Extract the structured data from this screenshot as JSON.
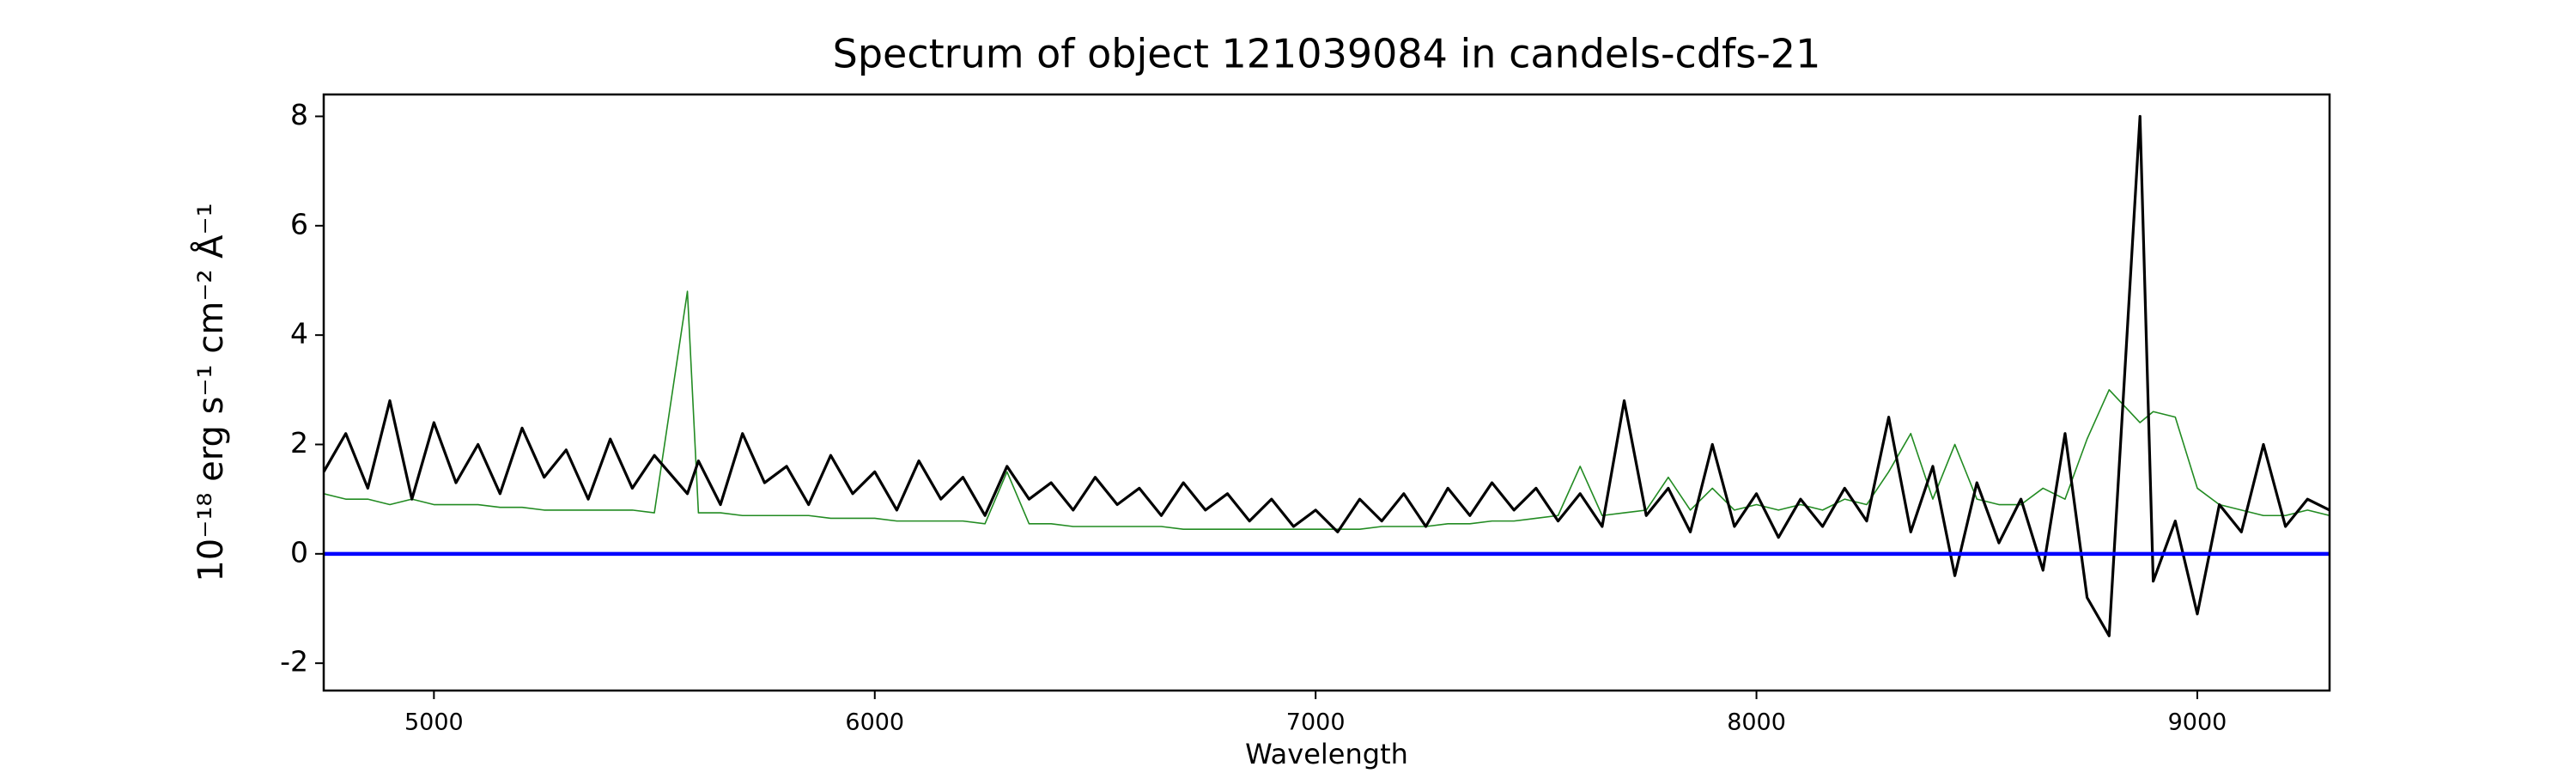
{
  "chart_data": {
    "type": "line",
    "title": "Spectrum of object 121039084 in candels-cdfs-21",
    "xlabel": "Wavelength",
    "ylabel": "10⁻¹⁸ erg s⁻¹ cm⁻² Å⁻¹",
    "xlim": [
      4750,
      9300
    ],
    "ylim": [
      -2.5,
      8.4
    ],
    "xticks": [
      5000,
      6000,
      7000,
      8000,
      9000
    ],
    "yticks": [
      -2,
      0,
      2,
      4,
      6,
      8
    ],
    "hlines": [
      {
        "y": 0,
        "color": "#0000ff"
      }
    ],
    "x": [
      4750,
      4800,
      4850,
      4900,
      4950,
      5000,
      5050,
      5100,
      5150,
      5200,
      5250,
      5300,
      5350,
      5400,
      5450,
      5500,
      5575,
      5600,
      5650,
      5700,
      5750,
      5800,
      5850,
      5900,
      5950,
      6000,
      6050,
      6100,
      6150,
      6200,
      6250,
      6300,
      6350,
      6400,
      6450,
      6500,
      6550,
      6600,
      6650,
      6700,
      6750,
      6800,
      6850,
      6900,
      6950,
      7000,
      7050,
      7100,
      7150,
      7200,
      7250,
      7300,
      7350,
      7400,
      7450,
      7500,
      7550,
      7600,
      7650,
      7700,
      7750,
      7800,
      7850,
      7900,
      7950,
      8000,
      8050,
      8100,
      8150,
      8200,
      8250,
      8300,
      8350,
      8400,
      8450,
      8500,
      8550,
      8600,
      8650,
      8700,
      8750,
      8800,
      8870,
      8900,
      8950,
      9000,
      9050,
      9100,
      9150,
      9200,
      9250,
      9300
    ],
    "series": [
      {
        "color": "#228b22",
        "width": 1.6,
        "values": [
          1.1,
          1.0,
          1.0,
          0.9,
          1.0,
          0.9,
          0.9,
          0.9,
          0.85,
          0.85,
          0.8,
          0.8,
          0.8,
          0.8,
          0.8,
          0.75,
          4.8,
          0.75,
          0.75,
          0.7,
          0.7,
          0.7,
          0.7,
          0.65,
          0.65,
          0.65,
          0.6,
          0.6,
          0.6,
          0.6,
          0.55,
          1.5,
          0.55,
          0.55,
          0.5,
          0.5,
          0.5,
          0.5,
          0.5,
          0.45,
          0.45,
          0.45,
          0.45,
          0.45,
          0.45,
          0.45,
          0.45,
          0.45,
          0.5,
          0.5,
          0.5,
          0.55,
          0.55,
          0.6,
          0.6,
          0.65,
          0.7,
          1.6,
          0.7,
          0.75,
          0.8,
          1.4,
          0.8,
          1.2,
          0.8,
          0.9,
          0.8,
          0.9,
          0.8,
          1.0,
          0.9,
          1.5,
          2.2,
          1.0,
          2.0,
          1.0,
          0.9,
          0.9,
          1.2,
          1.0,
          2.1,
          3.0,
          2.4,
          2.6,
          2.5,
          1.2,
          0.9,
          0.8,
          0.7,
          0.7,
          0.8,
          0.7
        ]
      },
      {
        "color": "#000000",
        "width": 3.2,
        "values": [
          1.5,
          2.2,
          1.2,
          2.8,
          1.0,
          2.4,
          1.3,
          2.0,
          1.1,
          2.3,
          1.4,
          1.9,
          1.0,
          2.1,
          1.2,
          1.8,
          1.1,
          1.7,
          0.9,
          2.2,
          1.3,
          1.6,
          0.9,
          1.8,
          1.1,
          1.5,
          0.8,
          1.7,
          1.0,
          1.4,
          0.7,
          1.6,
          1.0,
          1.3,
          0.8,
          1.4,
          0.9,
          1.2,
          0.7,
          1.3,
          0.8,
          1.1,
          0.6,
          1.0,
          0.5,
          0.8,
          0.4,
          1.0,
          0.6,
          1.1,
          0.5,
          1.2,
          0.7,
          1.3,
          0.8,
          1.2,
          0.6,
          1.1,
          0.5,
          2.8,
          0.7,
          1.2,
          0.4,
          2.0,
          0.5,
          1.1,
          0.3,
          1.0,
          0.5,
          1.2,
          0.6,
          2.5,
          0.4,
          1.6,
          -0.4,
          1.3,
          0.2,
          1.0,
          -0.3,
          2.2,
          -0.8,
          -1.5,
          8.0,
          -0.5,
          0.6,
          -1.1,
          0.9,
          0.4,
          2.0,
          0.5,
          1.0,
          0.8
        ]
      }
    ]
  }
}
